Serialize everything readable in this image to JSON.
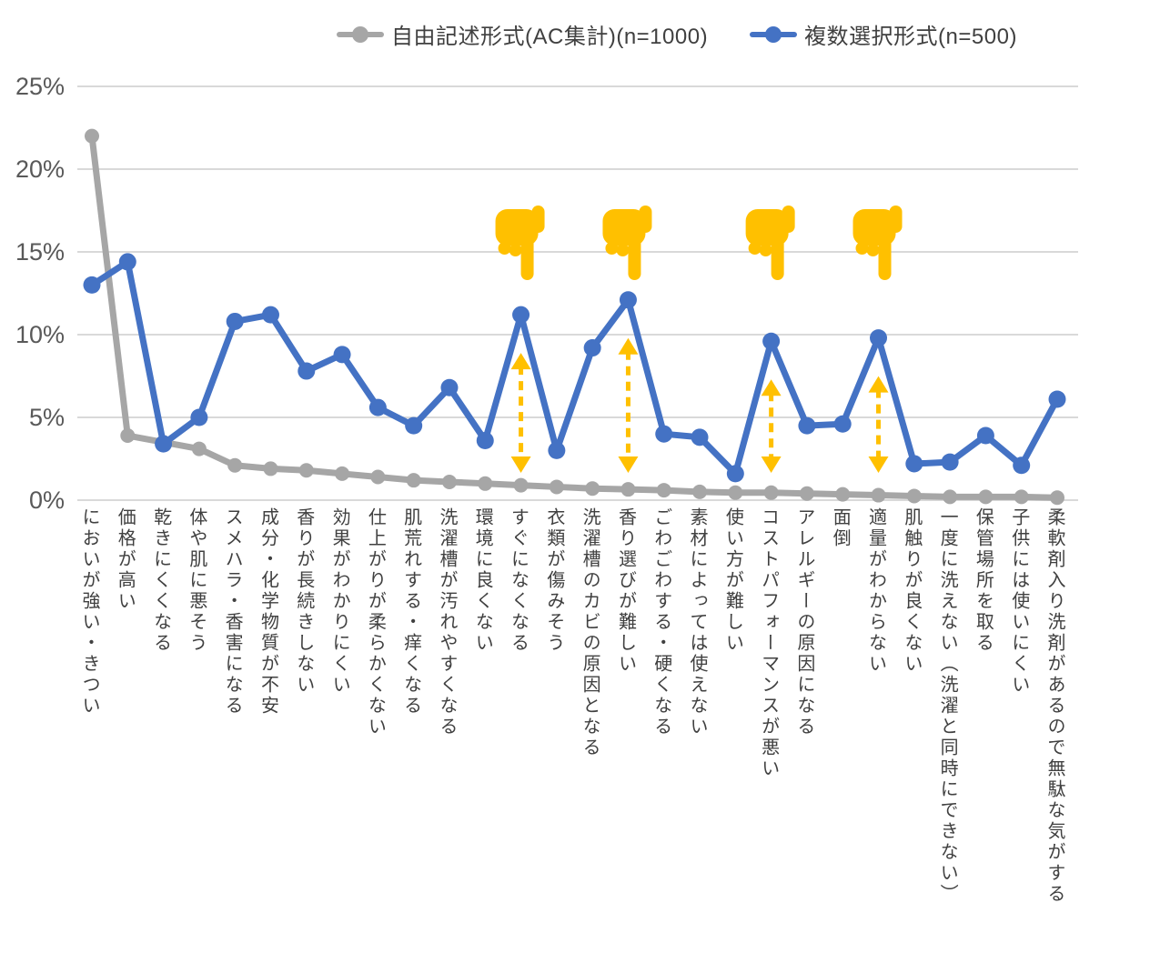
{
  "colors": {
    "open_ended_gray": "#A6A6A6",
    "multiple_choice_blue": "#4472C4",
    "annotation_yellow": "#FFC000",
    "gridline": "#D9D9D9",
    "axis_text": "#595959",
    "label_text": "#404040",
    "background": "#FFFFFF"
  },
  "legend": {
    "items": [
      {
        "label": "自由記述形式(AC集計)(n=1000)",
        "color_key": "open_ended_gray"
      },
      {
        "label": "複数選択形式(n=500)",
        "color_key": "multiple_choice_blue"
      }
    ]
  },
  "chart_data": {
    "type": "line",
    "title": "",
    "xlabel": "",
    "ylabel": "",
    "ylim": [
      0,
      25
    ],
    "grid": "horizontal",
    "legend_position": "top",
    "y_ticks": [
      {
        "label": "0%",
        "value": 0
      },
      {
        "label": "5%",
        "value": 5
      },
      {
        "label": "10%",
        "value": 10
      },
      {
        "label": "15%",
        "value": 15
      },
      {
        "label": "20%",
        "value": 20
      },
      {
        "label": "25%",
        "value": 25
      }
    ],
    "categories": [
      "においが強い・きつい",
      "価格が高い",
      "乾きにくくなる",
      "体や肌に悪そう",
      "スメハラ・香害になる",
      "成分・化学物質が不安",
      "香りが長続きしない",
      "効果がわかりにくい",
      "仕上がりが柔らかくない",
      "肌荒れする・痒くなる",
      "洗濯槽が汚れやすくなる",
      "環境に良くない",
      "すぐになくなる",
      "衣類が傷みそう",
      "洗濯槽のカビの原因となる",
      "香り選びが難しい",
      "ごわごわする・硬くなる",
      "素材によっては使えない",
      "使い方が難しい",
      "コストパフォーマンスが悪い",
      "アレルギーの原因になる",
      "面倒",
      "適量がわからない",
      "肌触りが良くない",
      "一度に洗えない（洗濯と同時にできない）",
      "保管場所を取る",
      "子供には使いにくい",
      "柔軟剤入り洗剤があるので無駄な気がする"
    ],
    "series": [
      {
        "name": "自由記述形式(AC集計)(n=1000)",
        "color_key": "open_ended_gray",
        "values": [
          22.0,
          3.9,
          3.5,
          3.1,
          2.1,
          1.9,
          1.8,
          1.6,
          1.4,
          1.2,
          1.1,
          1.0,
          0.9,
          0.8,
          0.7,
          0.65,
          0.6,
          0.5,
          0.45,
          0.45,
          0.4,
          0.35,
          0.3,
          0.25,
          0.2,
          0.2,
          0.2,
          0.15
        ]
      },
      {
        "name": "複数選択形式(n=500)",
        "color_key": "multiple_choice_blue",
        "values": [
          13.0,
          14.4,
          3.4,
          5.0,
          10.8,
          11.2,
          7.8,
          8.8,
          5.6,
          4.5,
          6.8,
          3.6,
          11.2,
          3.0,
          9.2,
          12.1,
          4.0,
          3.8,
          1.6,
          9.6,
          4.5,
          4.6,
          9.8,
          2.2,
          2.3,
          3.9,
          2.1,
          6.1
        ]
      }
    ],
    "annotations": {
      "hand_icon": "backhand-index-pointing-down",
      "hand_categories": [
        "すぐになくなる",
        "香り選びが難しい",
        "コストパフォーマンスが悪い",
        "適量がわからない"
      ],
      "arrow_style": "dashed-double-headed-vertical",
      "arrow_categories": [
        "すぐになくなる",
        "香り選びが難しい",
        "コストパフォーマンスが悪い",
        "適量がわからない"
      ]
    }
  }
}
